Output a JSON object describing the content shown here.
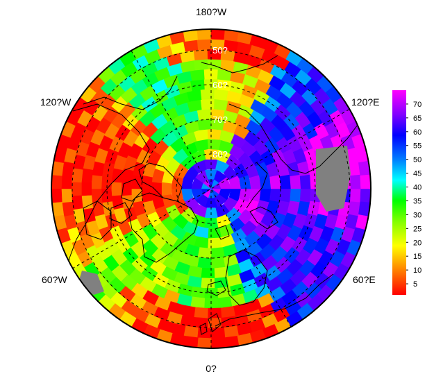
{
  "map": {
    "projection": "north polar stereographic",
    "longitude_labels": {
      "top": "180?W",
      "upper_left": "120?W",
      "upper_right": "120?E",
      "lower_left": "60?W",
      "lower_right": "60?E",
      "bottom": "0?"
    },
    "latitude_labels": [
      "50?",
      "60?",
      "70?",
      "80?"
    ],
    "missing_color": "#808080",
    "coastline_color": "#000000",
    "graticule_style": "dashed"
  },
  "colorbar": {
    "ticks": [
      "5",
      "10",
      "15",
      "20",
      "25",
      "30",
      "35",
      "40",
      "45",
      "50",
      "55",
      "60",
      "65",
      "70"
    ],
    "range": [
      1,
      75
    ],
    "colors": [
      "#ff0000",
      "#ff8000",
      "#ffff00",
      "#80ff00",
      "#00ff00",
      "#00ffff",
      "#0080ff",
      "#0000ff",
      "#8000ff",
      "#ff00ff"
    ]
  }
}
